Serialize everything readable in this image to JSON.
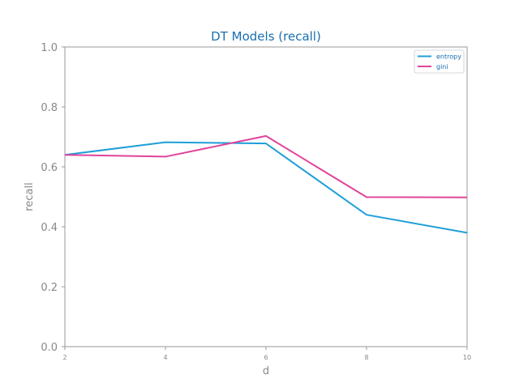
{
  "chart_data": {
    "type": "line",
    "title": "DT Models (recall)",
    "xlabel": "d",
    "ylabel": "recall",
    "x": [
      2,
      4,
      6,
      8,
      10
    ],
    "xticks": [
      "2",
      "4",
      "6",
      "8",
      "10"
    ],
    "yticks": [
      "0.0",
      "0.2",
      "0.4",
      "0.6",
      "0.8",
      "1.0"
    ],
    "xlim": [
      2,
      10
    ],
    "ylim": [
      0.0,
      1.0
    ],
    "grid": false,
    "legend_position": "top-right",
    "series": [
      {
        "name": "entropy",
        "color": "#1f9fd8",
        "values": [
          0.64,
          0.682,
          0.678,
          0.44,
          0.38
        ]
      },
      {
        "name": "gini",
        "color": "#e0449b",
        "values": [
          0.64,
          0.634,
          0.703,
          0.499,
          0.498
        ]
      }
    ],
    "colors": {
      "title": "#1a6fb0",
      "axis": "#999999",
      "tick_label": "#888888",
      "legend_text": "#1a6fb0"
    }
  }
}
